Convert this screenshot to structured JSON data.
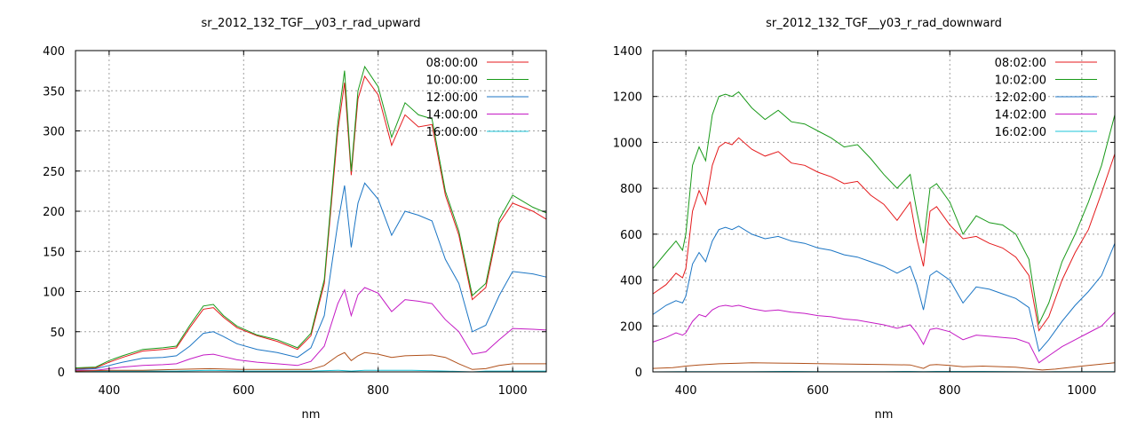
{
  "chart_data": [
    {
      "type": "line",
      "title": "sr_2012_132_TGF__y03_r_rad_upward",
      "xlabel": "nm",
      "ylabel": "",
      "xlim": [
        350,
        1050
      ],
      "ylim": [
        0,
        400
      ],
      "xticks": [
        400,
        600,
        800,
        1000
      ],
      "yticks": [
        0,
        50,
        100,
        150,
        200,
        250,
        300,
        350,
        400
      ],
      "grid": true,
      "legend": "top-right",
      "series": [
        {
          "name": "08:00:00",
          "color": "#e41a1c",
          "x": [
            350,
            380,
            400,
            420,
            450,
            480,
            500,
            520,
            540,
            555,
            570,
            590,
            620,
            650,
            680,
            700,
            720,
            740,
            750,
            760,
            770,
            780,
            800,
            820,
            840,
            860,
            880,
            900,
            920,
            940,
            960,
            980,
            1000,
            1030,
            1050
          ],
          "y": [
            4,
            5,
            12,
            18,
            26,
            28,
            30,
            55,
            78,
            80,
            68,
            55,
            45,
            38,
            28,
            45,
            110,
            300,
            360,
            245,
            340,
            368,
            345,
            282,
            320,
            305,
            308,
            220,
            170,
            90,
            105,
            185,
            210,
            200,
            190
          ]
        },
        {
          "name": "10:00:00",
          "color": "#1a9a1a",
          "x": [
            350,
            380,
            400,
            420,
            450,
            480,
            500,
            520,
            540,
            555,
            570,
            590,
            620,
            650,
            680,
            700,
            720,
            740,
            750,
            760,
            770,
            780,
            800,
            820,
            840,
            860,
            880,
            900,
            920,
            940,
            960,
            980,
            1000,
            1030,
            1050
          ],
          "y": [
            5,
            6,
            14,
            20,
            28,
            30,
            32,
            58,
            82,
            84,
            70,
            57,
            46,
            40,
            30,
            48,
            115,
            310,
            375,
            250,
            350,
            380,
            355,
            292,
            335,
            320,
            315,
            225,
            175,
            95,
            110,
            190,
            220,
            205,
            198
          ]
        },
        {
          "name": "12:00:00",
          "color": "#1b75c4",
          "x": [
            350,
            380,
            400,
            420,
            450,
            480,
            500,
            520,
            540,
            555,
            570,
            590,
            620,
            650,
            680,
            700,
            720,
            740,
            750,
            760,
            770,
            780,
            800,
            820,
            840,
            860,
            880,
            900,
            920,
            940,
            960,
            980,
            1000,
            1030,
            1050
          ],
          "y": [
            3,
            4,
            8,
            12,
            17,
            18,
            20,
            32,
            48,
            50,
            44,
            35,
            28,
            24,
            18,
            30,
            70,
            185,
            232,
            155,
            210,
            235,
            215,
            170,
            200,
            195,
            188,
            140,
            110,
            50,
            58,
            95,
            125,
            122,
            118
          ]
        },
        {
          "name": "14:00:00",
          "color": "#c41ac4",
          "x": [
            350,
            380,
            400,
            420,
            450,
            480,
            500,
            520,
            540,
            555,
            570,
            590,
            620,
            650,
            680,
            700,
            720,
            740,
            750,
            760,
            770,
            780,
            800,
            820,
            840,
            860,
            880,
            900,
            920,
            940,
            960,
            980,
            1000,
            1030,
            1050
          ],
          "y": [
            2,
            2,
            4,
            6,
            8,
            9,
            10,
            16,
            21,
            22,
            19,
            15,
            12,
            10,
            8,
            13,
            32,
            85,
            102,
            70,
            96,
            105,
            98,
            75,
            90,
            88,
            85,
            65,
            50,
            22,
            25,
            40,
            54,
            53,
            52
          ]
        },
        {
          "name": "16:00:00",
          "color": "#1cc4d8",
          "x": [
            350,
            400,
            450,
            500,
            550,
            600,
            650,
            700,
            740,
            760,
            780,
            800,
            850,
            900,
            940,
            960,
            1000,
            1050
          ],
          "y": [
            0,
            1,
            1,
            1,
            2,
            1,
            1,
            1,
            2,
            1,
            2,
            2,
            2,
            1,
            0,
            1,
            1,
            1
          ]
        },
        {
          "name": "",
          "color": "#b0501a",
          "x": [
            350,
            400,
            450,
            500,
            550,
            600,
            650,
            700,
            720,
            740,
            750,
            760,
            770,
            780,
            800,
            820,
            840,
            880,
            900,
            920,
            940,
            960,
            980,
            1000,
            1050
          ],
          "y": [
            1,
            2,
            2,
            3,
            4,
            3,
            3,
            3,
            8,
            20,
            24,
            14,
            20,
            24,
            22,
            18,
            20,
            21,
            18,
            10,
            3,
            4,
            8,
            10,
            10
          ]
        }
      ]
    },
    {
      "type": "line",
      "title": "sr_2012_132_TGF__y03_r_rad_downward",
      "xlabel": "nm",
      "ylabel": "",
      "xlim": [
        350,
        1050
      ],
      "ylim": [
        0,
        1400
      ],
      "xticks": [
        400,
        600,
        800,
        1000
      ],
      "yticks": [
        0,
        200,
        400,
        600,
        800,
        1000,
        1200,
        1400
      ],
      "grid": true,
      "legend": "top-right",
      "series": [
        {
          "name": "08:02:00",
          "color": "#e41a1c",
          "x": [
            350,
            370,
            385,
            395,
            400,
            410,
            420,
            430,
            440,
            450,
            460,
            470,
            480,
            500,
            520,
            540,
            560,
            580,
            600,
            620,
            640,
            660,
            680,
            700,
            720,
            740,
            750,
            760,
            770,
            780,
            800,
            820,
            840,
            860,
            880,
            900,
            920,
            935,
            950,
            970,
            990,
            1010,
            1030,
            1050
          ],
          "y": [
            340,
            380,
            430,
            410,
            450,
            700,
            790,
            730,
            900,
            980,
            1000,
            990,
            1020,
            970,
            940,
            960,
            910,
            900,
            870,
            850,
            820,
            830,
            770,
            730,
            660,
            740,
            580,
            460,
            700,
            720,
            640,
            580,
            590,
            560,
            540,
            500,
            420,
            180,
            240,
            400,
            520,
            620,
            780,
            950
          ]
        },
        {
          "name": "10:02:00",
          "color": "#1a9a1a",
          "x": [
            350,
            370,
            385,
            395,
            400,
            410,
            420,
            430,
            440,
            450,
            460,
            470,
            480,
            500,
            520,
            540,
            560,
            580,
            600,
            620,
            640,
            660,
            680,
            700,
            720,
            740,
            750,
            760,
            770,
            780,
            800,
            820,
            840,
            860,
            880,
            900,
            920,
            935,
            950,
            970,
            990,
            1010,
            1030,
            1050
          ],
          "y": [
            450,
            520,
            570,
            530,
            600,
            900,
            980,
            920,
            1120,
            1200,
            1210,
            1200,
            1220,
            1150,
            1100,
            1140,
            1090,
            1080,
            1050,
            1020,
            980,
            990,
            930,
            860,
            800,
            860,
            700,
            560,
            800,
            820,
            740,
            600,
            680,
            650,
            640,
            600,
            490,
            210,
            300,
            480,
            600,
            740,
            900,
            1120
          ]
        },
        {
          "name": "12:02:00",
          "color": "#1b75c4",
          "x": [
            350,
            370,
            385,
            395,
            400,
            410,
            420,
            430,
            440,
            450,
            460,
            470,
            480,
            500,
            520,
            540,
            560,
            580,
            600,
            620,
            640,
            660,
            680,
            700,
            720,
            740,
            750,
            760,
            770,
            780,
            800,
            820,
            840,
            860,
            880,
            900,
            920,
            935,
            950,
            970,
            990,
            1010,
            1030,
            1050
          ],
          "y": [
            250,
            290,
            310,
            300,
            330,
            470,
            520,
            480,
            570,
            620,
            630,
            620,
            635,
            600,
            580,
            590,
            570,
            560,
            540,
            530,
            510,
            500,
            480,
            460,
            430,
            460,
            380,
            270,
            420,
            440,
            400,
            300,
            370,
            360,
            340,
            320,
            280,
            90,
            140,
            220,
            290,
            350,
            420,
            560
          ]
        },
        {
          "name": "14:02:00",
          "color": "#c41ac4",
          "x": [
            350,
            370,
            385,
            395,
            400,
            410,
            420,
            430,
            440,
            450,
            460,
            470,
            480,
            500,
            520,
            540,
            560,
            580,
            600,
            620,
            640,
            660,
            680,
            700,
            720,
            740,
            750,
            760,
            770,
            780,
            800,
            820,
            840,
            860,
            880,
            900,
            920,
            935,
            950,
            970,
            990,
            1010,
            1030,
            1050
          ],
          "y": [
            130,
            150,
            170,
            160,
            170,
            220,
            250,
            240,
            270,
            285,
            290,
            285,
            290,
            275,
            265,
            270,
            260,
            255,
            245,
            240,
            230,
            225,
            215,
            205,
            190,
            205,
            170,
            120,
            185,
            190,
            175,
            140,
            160,
            155,
            150,
            145,
            125,
            40,
            70,
            110,
            140,
            170,
            200,
            260
          ]
        },
        {
          "name": "16:02:00",
          "color": "#1cc4d8",
          "x": [
            350,
            400,
            450,
            500,
            550,
            600,
            650,
            700,
            740,
            760,
            780,
            800,
            850,
            900,
            940,
            960,
            1000,
            1050
          ],
          "y": [
            0,
            1,
            1,
            1,
            2,
            1,
            1,
            1,
            2,
            1,
            2,
            2,
            2,
            1,
            0,
            1,
            1,
            1
          ]
        },
        {
          "name": "",
          "color": "#b0501a",
          "x": [
            350,
            380,
            400,
            420,
            450,
            480,
            500,
            550,
            600,
            650,
            700,
            740,
            760,
            770,
            780,
            800,
            820,
            850,
            900,
            940,
            960,
            1000,
            1050
          ],
          "y": [
            15,
            18,
            25,
            30,
            35,
            38,
            40,
            38,
            36,
            34,
            32,
            30,
            15,
            30,
            32,
            28,
            22,
            25,
            20,
            8,
            12,
            25,
            40
          ]
        }
      ]
    }
  ]
}
